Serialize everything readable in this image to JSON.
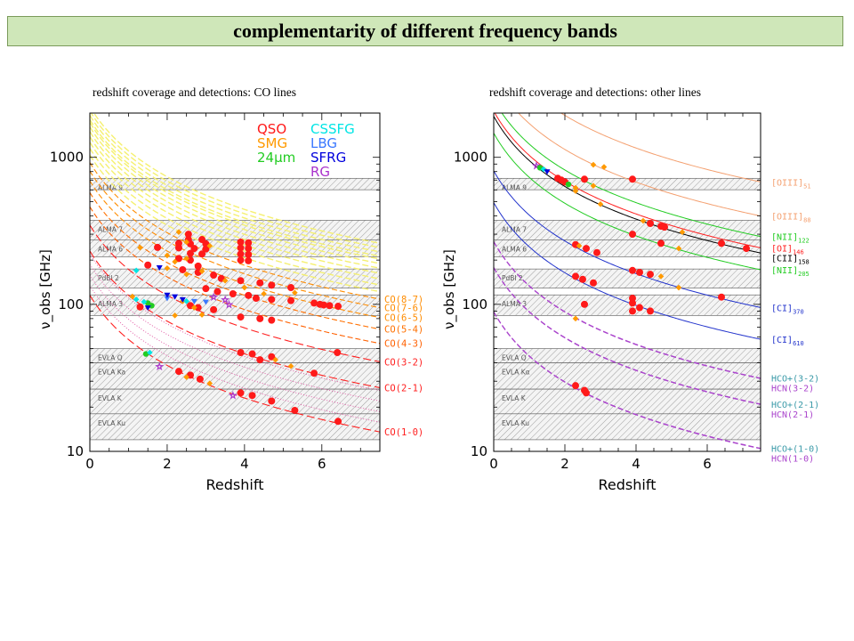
{
  "page": {
    "title": "complementarity of different frequency bands",
    "subtitle_left": "redshift coverage and detections: CO lines",
    "subtitle_right": "redshift coverage and detections: other lines"
  },
  "chart_data": [
    {
      "type": "scatter",
      "xlabel": "Redshift",
      "ylabel": "ν_obs [GHz]",
      "xlim": [
        0,
        7.5
      ],
      "ylim": [
        10,
        2000
      ],
      "yscale": "log",
      "x_ticks": [
        0,
        2,
        4,
        6
      ],
      "y_ticks": [
        10,
        100,
        1000
      ],
      "bands": [
        {
          "name": "ALMA 9",
          "range": [
            602,
            720
          ]
        },
        {
          "name": "ALMA 7",
          "range": [
            275,
            373
          ]
        },
        {
          "name": "ALMA 6",
          "range": [
            211,
            275
          ]
        },
        {
          "name": "PdBI 2",
          "range": [
            129,
            174
          ]
        },
        {
          "name": "ALMA 3",
          "range": [
            84,
            116
          ]
        },
        {
          "name": "EVLA Q",
          "range": [
            40,
            50
          ]
        },
        {
          "name": "EVLA Ka",
          "range": [
            26.5,
            40
          ]
        },
        {
          "name": "EVLA K",
          "range": [
            18,
            26.5
          ]
        },
        {
          "name": "EVLA Ku",
          "range": [
            12,
            18
          ]
        }
      ],
      "legend": [
        {
          "label": "QSO",
          "color": "#ff1a1a"
        },
        {
          "label": "SMG",
          "color": "#ff9a00"
        },
        {
          "label": "24μm",
          "color": "#22cc22"
        },
        {
          "label": "CSSFG",
          "color": "#00e5e5"
        },
        {
          "label": "LBG",
          "color": "#3a78ff"
        },
        {
          "label": "SFRG",
          "color": "#0000dd"
        },
        {
          "label": "RG",
          "color": "#aa33cc"
        }
      ],
      "lines": [
        {
          "label": "CO(8-7)",
          "rest_freq": 921.8,
          "color": "#ff8c00",
          "dash": "6,3"
        },
        {
          "label": "CO(7-6)",
          "rest_freq": 806.7,
          "color": "#ff8c00",
          "dash": "6,3"
        },
        {
          "label": "CO(6-5)",
          "rest_freq": 691.5,
          "color": "#ff8c00",
          "dash": "6,3"
        },
        {
          "label": "CO(5-4)",
          "rest_freq": 576.3,
          "color": "#ff7000",
          "dash": "6,3"
        },
        {
          "label": "CO(4-3)",
          "rest_freq": 461.0,
          "color": "#ff6000",
          "dash": "6,3"
        },
        {
          "label": "CO(3-2)",
          "rest_freq": 345.8,
          "color": "#ff2020",
          "dash": "9,4"
        },
        {
          "label": "CO(2-1)",
          "rest_freq": 230.5,
          "color": "#ff2020",
          "dash": "9,4"
        },
        {
          "label": "CO(1-0)",
          "rest_freq": 115.3,
          "color": "#ff2020",
          "dash": "9,4"
        }
      ],
      "yellow_lines": [
        2212,
        2068,
        1933,
        1806,
        1727,
        1612,
        1497,
        1382,
        1267,
        1152,
        1037
      ],
      "points": [
        {
          "x": 2.55,
          "y": 300,
          "g": "QSO"
        },
        {
          "x": 2.55,
          "y": 276,
          "g": "QSO"
        },
        {
          "x": 2.9,
          "y": 276,
          "g": "QSO"
        },
        {
          "x": 2.3,
          "y": 260,
          "g": "QSO"
        },
        {
          "x": 2.6,
          "y": 258,
          "g": "QSO"
        },
        {
          "x": 3.0,
          "y": 258,
          "g": "QSO"
        },
        {
          "x": 3.9,
          "y": 265,
          "g": "QSO"
        },
        {
          "x": 4.1,
          "y": 262,
          "g": "QSO"
        },
        {
          "x": 1.75,
          "y": 244,
          "g": "QSO"
        },
        {
          "x": 2.3,
          "y": 242,
          "g": "QSO"
        },
        {
          "x": 2.7,
          "y": 240,
          "g": "QSO"
        },
        {
          "x": 3.0,
          "y": 238,
          "g": "QSO"
        },
        {
          "x": 3.9,
          "y": 242,
          "g": "QSO"
        },
        {
          "x": 4.1,
          "y": 240,
          "g": "QSO"
        },
        {
          "x": 2.6,
          "y": 222,
          "g": "QSO"
        },
        {
          "x": 2.9,
          "y": 220,
          "g": "QSO"
        },
        {
          "x": 3.9,
          "y": 220,
          "g": "QSO"
        },
        {
          "x": 4.1,
          "y": 218,
          "g": "QSO"
        },
        {
          "x": 2.3,
          "y": 205,
          "g": "QSO"
        },
        {
          "x": 2.6,
          "y": 200,
          "g": "QSO"
        },
        {
          "x": 3.9,
          "y": 200,
          "g": "QSO"
        },
        {
          "x": 4.1,
          "y": 198,
          "g": "QSO"
        },
        {
          "x": 1.5,
          "y": 185,
          "g": "QSO"
        },
        {
          "x": 2.8,
          "y": 182,
          "g": "QSO"
        },
        {
          "x": 2.4,
          "y": 172,
          "g": "QSO"
        },
        {
          "x": 2.8,
          "y": 165,
          "g": "QSO"
        },
        {
          "x": 3.2,
          "y": 158,
          "g": "QSO"
        },
        {
          "x": 3.4,
          "y": 150,
          "g": "QSO"
        },
        {
          "x": 3.9,
          "y": 145,
          "g": "QSO"
        },
        {
          "x": 4.4,
          "y": 140,
          "g": "QSO"
        },
        {
          "x": 4.7,
          "y": 135,
          "g": "QSO"
        },
        {
          "x": 5.2,
          "y": 130,
          "g": "QSO"
        },
        {
          "x": 3.0,
          "y": 128,
          "g": "QSO"
        },
        {
          "x": 3.3,
          "y": 122,
          "g": "QSO"
        },
        {
          "x": 3.7,
          "y": 118,
          "g": "QSO"
        },
        {
          "x": 4.1,
          "y": 115,
          "g": "QSO"
        },
        {
          "x": 4.3,
          "y": 110,
          "g": "QSO"
        },
        {
          "x": 4.7,
          "y": 108,
          "g": "QSO"
        },
        {
          "x": 5.2,
          "y": 106,
          "g": "QSO"
        },
        {
          "x": 5.8,
          "y": 102,
          "g": "QSO"
        },
        {
          "x": 5.95,
          "y": 100,
          "g": "QSO"
        },
        {
          "x": 6.05,
          "y": 99,
          "g": "QSO"
        },
        {
          "x": 6.2,
          "y": 98,
          "g": "QSO"
        },
        {
          "x": 6.42,
          "y": 97,
          "g": "QSO"
        },
        {
          "x": 2.8,
          "y": 95,
          "g": "QSO"
        },
        {
          "x": 3.2,
          "y": 92,
          "g": "QSO"
        },
        {
          "x": 3.9,
          "y": 82,
          "g": "QSO"
        },
        {
          "x": 4.4,
          "y": 80,
          "g": "QSO"
        },
        {
          "x": 4.7,
          "y": 78,
          "g": "QSO"
        },
        {
          "x": 2.6,
          "y": 98,
          "g": "QSO"
        },
        {
          "x": 1.3,
          "y": 96,
          "g": "QSO"
        },
        {
          "x": 3.9,
          "y": 47,
          "g": "QSO"
        },
        {
          "x": 4.2,
          "y": 46,
          "g": "QSO"
        },
        {
          "x": 4.7,
          "y": 44,
          "g": "QSO"
        },
        {
          "x": 6.4,
          "y": 47,
          "g": "QSO"
        },
        {
          "x": 4.4,
          "y": 42,
          "g": "QSO"
        },
        {
          "x": 5.8,
          "y": 34,
          "g": "QSO"
        },
        {
          "x": 2.3,
          "y": 35,
          "g": "QSO"
        },
        {
          "x": 2.6,
          "y": 33,
          "g": "QSO"
        },
        {
          "x": 2.85,
          "y": 31,
          "g": "QSO"
        },
        {
          "x": 3.9,
          "y": 25,
          "g": "QSO"
        },
        {
          "x": 4.2,
          "y": 24,
          "g": "QSO"
        },
        {
          "x": 4.7,
          "y": 22,
          "g": "QSO"
        },
        {
          "x": 5.3,
          "y": 19,
          "g": "QSO"
        },
        {
          "x": 6.42,
          "y": 16,
          "g": "QSO"
        },
        {
          "x": 2.3,
          "y": 310,
          "g": "SMG"
        },
        {
          "x": 2.5,
          "y": 265,
          "g": "SMG"
        },
        {
          "x": 3.1,
          "y": 250,
          "g": "SMG"
        },
        {
          "x": 1.3,
          "y": 243,
          "g": "SMG"
        },
        {
          "x": 2.0,
          "y": 215,
          "g": "SMG"
        },
        {
          "x": 2.5,
          "y": 205,
          "g": "SMG"
        },
        {
          "x": 2.2,
          "y": 195,
          "g": "SMG"
        },
        {
          "x": 2.0,
          "y": 176,
          "g": "SMG"
        },
        {
          "x": 2.9,
          "y": 168,
          "g": "SMG"
        },
        {
          "x": 2.5,
          "y": 160,
          "g": "SMG"
        },
        {
          "x": 3.5,
          "y": 145,
          "g": "SMG"
        },
        {
          "x": 4.0,
          "y": 130,
          "g": "SMG"
        },
        {
          "x": 5.3,
          "y": 120,
          "g": "SMG"
        },
        {
          "x": 4.5,
          "y": 118,
          "g": "SMG"
        },
        {
          "x": 1.1,
          "y": 113,
          "g": "SMG"
        },
        {
          "x": 2.4,
          "y": 105,
          "g": "SMG"
        },
        {
          "x": 2.7,
          "y": 95,
          "g": "SMG"
        },
        {
          "x": 2.9,
          "y": 85,
          "g": "SMG"
        },
        {
          "x": 2.2,
          "y": 84,
          "g": "SMG"
        },
        {
          "x": 4.8,
          "y": 42,
          "g": "SMG"
        },
        {
          "x": 5.2,
          "y": 38,
          "g": "SMG"
        },
        {
          "x": 2.5,
          "y": 32,
          "g": "SMG"
        },
        {
          "x": 3.1,
          "y": 29,
          "g": "SMG"
        },
        {
          "x": 1.5,
          "y": 102,
          "g": "24μm"
        },
        {
          "x": 1.45,
          "y": 46,
          "g": "24μm"
        },
        {
          "x": 1.6,
          "y": 98,
          "g": "24μm"
        },
        {
          "x": 1.2,
          "y": 108,
          "g": "CSSFG"
        },
        {
          "x": 1.4,
          "y": 104,
          "g": "CSSFG"
        },
        {
          "x": 1.55,
          "y": 47,
          "g": "CSSFG"
        },
        {
          "x": 1.2,
          "y": 170,
          "g": "CSSFG"
        },
        {
          "x": 2.5,
          "y": 105,
          "g": "CSSFG"
        },
        {
          "x": 2.0,
          "y": 110,
          "g": "LBG"
        },
        {
          "x": 2.7,
          "y": 105,
          "g": "LBG"
        },
        {
          "x": 3.0,
          "y": 104,
          "g": "LBG"
        },
        {
          "x": 1.8,
          "y": 178,
          "g": "SFRG"
        },
        {
          "x": 2.0,
          "y": 116,
          "g": "SFRG"
        },
        {
          "x": 2.2,
          "y": 113,
          "g": "SFRG"
        },
        {
          "x": 2.4,
          "y": 108,
          "g": "SFRG"
        },
        {
          "x": 1.5,
          "y": 95,
          "g": "SFRG"
        },
        {
          "x": 3.5,
          "y": 108,
          "g": "RG"
        },
        {
          "x": 3.6,
          "y": 100,
          "g": "RG"
        },
        {
          "x": 1.8,
          "y": 38,
          "g": "RG"
        },
        {
          "x": 3.7,
          "y": 24,
          "g": "RG"
        },
        {
          "x": 3.2,
          "y": 112,
          "g": "RG"
        }
      ]
    },
    {
      "type": "scatter",
      "xlabel": "Redshift",
      "ylabel": "ν_obs [GHz]",
      "xlim": [
        0,
        7.5
      ],
      "ylim": [
        10,
        2000
      ],
      "yscale": "log",
      "x_ticks": [
        0,
        2,
        4,
        6
      ],
      "y_ticks": [
        10,
        100,
        1000
      ],
      "bands": [
        {
          "name": "ALMA 9",
          "range": [
            602,
            720
          ]
        },
        {
          "name": "ALMA 7",
          "range": [
            275,
            373
          ]
        },
        {
          "name": "ALMA 6",
          "range": [
            211,
            275
          ]
        },
        {
          "name": "PdBI 2",
          "range": [
            129,
            174
          ]
        },
        {
          "name": "ALMA 3",
          "range": [
            84,
            116
          ]
        },
        {
          "name": "EVLA Q",
          "range": [
            40,
            50
          ]
        },
        {
          "name": "EVLA Kα",
          "range": [
            26.5,
            40
          ]
        },
        {
          "name": "EVLA K",
          "range": [
            18,
            26.5
          ]
        },
        {
          "name": "EVLA Ku",
          "range": [
            12,
            18
          ]
        }
      ],
      "lines": [
        {
          "label": "[OIII]",
          "sub": "51",
          "rest_freq": 5785,
          "color": "#f4a070",
          "dash": ""
        },
        {
          "label": "[OIII]",
          "sub": "88",
          "rest_freq": 3393,
          "color": "#f4a070",
          "dash": ""
        },
        {
          "label": "[NII]",
          "sub": "122",
          "rest_freq": 2459,
          "color": "#22cc22",
          "dash": ""
        },
        {
          "label": "[OI]",
          "sub": "146",
          "rest_freq": 2060,
          "color": "#ff2020",
          "dash": ""
        },
        {
          "label": "[CII]",
          "sub": "158",
          "rest_freq": 1901,
          "color": "#000000",
          "dash": ""
        },
        {
          "label": "[NII]",
          "sub": "205",
          "rest_freq": 1461,
          "color": "#22cc22",
          "dash": ""
        },
        {
          "label": "[CI]",
          "sub": "370",
          "rest_freq": 809,
          "color": "#2233cc",
          "dash": ""
        },
        {
          "label": "[CI]",
          "sub": "610",
          "rest_freq": 492,
          "color": "#2233cc",
          "dash": ""
        },
        {
          "label": "HCO+(3-2)",
          "rest_freq": 267.6,
          "color": "#aa44cc",
          "dash": "6,3"
        },
        {
          "label": "HCN(3-2)",
          "rest_freq": 265.9,
          "color": "#aa44cc",
          "dash": "6,3"
        },
        {
          "label": "HCO+(2-1)",
          "rest_freq": 178.4,
          "color": "#aa44cc",
          "dash": "6,3"
        },
        {
          "label": "HCN(2-1)",
          "rest_freq": 177.3,
          "color": "#aa44cc",
          "dash": "6,3"
        },
        {
          "label": "HCO+(1-0)",
          "rest_freq": 89.2,
          "color": "#aa44cc",
          "dash": "6,3"
        },
        {
          "label": "HCN(1-0)",
          "rest_freq": 88.6,
          "color": "#aa44cc",
          "dash": "6,3"
        }
      ],
      "points": [
        {
          "x": 2.8,
          "y": 890,
          "g": "SMG"
        },
        {
          "x": 3.1,
          "y": 860,
          "g": "SMG"
        },
        {
          "x": 1.2,
          "y": 880,
          "g": "RG"
        },
        {
          "x": 1.3,
          "y": 850,
          "g": "24μm"
        },
        {
          "x": 1.4,
          "y": 830,
          "g": "CSSFG"
        },
        {
          "x": 1.5,
          "y": 800,
          "g": "SFRG"
        },
        {
          "x": 1.8,
          "y": 720,
          "g": "QSO"
        },
        {
          "x": 1.9,
          "y": 700,
          "g": "QSO"
        },
        {
          "x": 2.0,
          "y": 680,
          "g": "QSO"
        },
        {
          "x": 2.1,
          "y": 655,
          "g": "24μm"
        },
        {
          "x": 2.55,
          "y": 710,
          "g": "QSO"
        },
        {
          "x": 3.9,
          "y": 710,
          "g": "QSO"
        },
        {
          "x": 2.3,
          "y": 620,
          "g": "SMG"
        },
        {
          "x": 2.3,
          "y": 590,
          "g": "SMG"
        },
        {
          "x": 2.8,
          "y": 640,
          "g": "SMG"
        },
        {
          "x": 3.0,
          "y": 480,
          "g": "SMG"
        },
        {
          "x": 4.2,
          "y": 370,
          "g": "SMG"
        },
        {
          "x": 4.4,
          "y": 355,
          "g": "QSO"
        },
        {
          "x": 4.7,
          "y": 340,
          "g": "QSO"
        },
        {
          "x": 4.8,
          "y": 335,
          "g": "QSO"
        },
        {
          "x": 3.9,
          "y": 300,
          "g": "QSO"
        },
        {
          "x": 5.3,
          "y": 310,
          "g": "SMG"
        },
        {
          "x": 4.7,
          "y": 260,
          "g": "QSO"
        },
        {
          "x": 5.2,
          "y": 240,
          "g": "SMG"
        },
        {
          "x": 6.4,
          "y": 260,
          "g": "QSO"
        },
        {
          "x": 7.1,
          "y": 240,
          "g": "QSO"
        },
        {
          "x": 2.3,
          "y": 255,
          "g": "QSO"
        },
        {
          "x": 2.4,
          "y": 250,
          "g": "SMG"
        },
        {
          "x": 2.6,
          "y": 240,
          "g": "QSO"
        },
        {
          "x": 2.9,
          "y": 225,
          "g": "QSO"
        },
        {
          "x": 3.9,
          "y": 170,
          "g": "QSO"
        },
        {
          "x": 4.1,
          "y": 165,
          "g": "QSO"
        },
        {
          "x": 4.4,
          "y": 160,
          "g": "QSO"
        },
        {
          "x": 4.7,
          "y": 155,
          "g": "SMG"
        },
        {
          "x": 5.2,
          "y": 130,
          "g": "SMG"
        },
        {
          "x": 2.3,
          "y": 155,
          "g": "QSO"
        },
        {
          "x": 2.5,
          "y": 148,
          "g": "QSO"
        },
        {
          "x": 2.8,
          "y": 140,
          "g": "QSO"
        },
        {
          "x": 3.9,
          "y": 110,
          "g": "QSO"
        },
        {
          "x": 3.9,
          "y": 102,
          "g": "QSO"
        },
        {
          "x": 4.1,
          "y": 95,
          "g": "QSO"
        },
        {
          "x": 4.4,
          "y": 90,
          "g": "QSO"
        },
        {
          "x": 2.55,
          "y": 100,
          "g": "QSO"
        },
        {
          "x": 6.4,
          "y": 112,
          "g": "QSO"
        },
        {
          "x": 3.9,
          "y": 90,
          "g": "QSO"
        },
        {
          "x": 2.3,
          "y": 80,
          "g": "SMG"
        },
        {
          "x": 2.3,
          "y": 28,
          "g": "QSO"
        },
        {
          "x": 2.55,
          "y": 26,
          "g": "QSO"
        },
        {
          "x": 2.6,
          "y": 25,
          "g": "QSO"
        }
      ]
    }
  ]
}
